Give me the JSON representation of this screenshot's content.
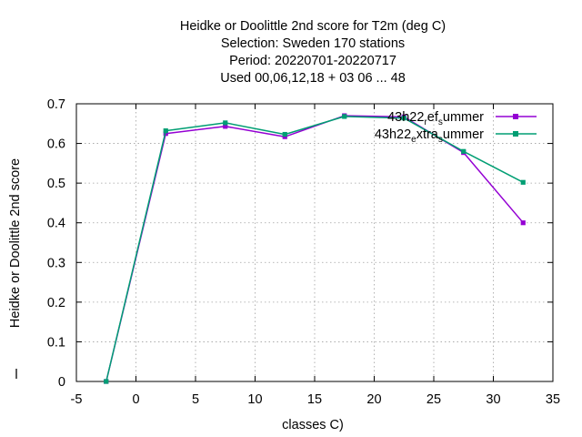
{
  "chart_data": {
    "type": "line",
    "title_lines": [
      "Heidke or Doolittle 2nd score  for T2m (deg C)",
      "Selection: Sweden    170 stations",
      "Period: 20220701-20220717",
      "Used  00,06,12,18  + 03 06 ... 48"
    ],
    "xlabel": "classes C)",
    "ylabel": "Heidke or Doolittle 2nd score",
    "xlim": [
      -5,
      35
    ],
    "ylim": [
      0,
      0.7
    ],
    "xticks": [
      "-5",
      "0",
      "5",
      "10",
      "15",
      "20",
      "25",
      "30",
      "35"
    ],
    "yticks": [
      "0",
      "0.1",
      "0.2",
      "0.3",
      "0.4",
      "0.5",
      "0.6",
      "0.7"
    ],
    "grid": true,
    "legend_position": "top-right",
    "series": [
      {
        "name": "43h22_ref_summer",
        "legend_parts": [
          "43h22",
          "r",
          "ef",
          "s",
          "ummer"
        ],
        "color": "#9400d3",
        "x": [
          -2.5,
          2.5,
          7.5,
          12.5,
          17.5,
          22.5,
          27.5,
          32.5
        ],
        "y": [
          0.0,
          0.625,
          0.643,
          0.617,
          0.67,
          0.667,
          0.577,
          0.4
        ]
      },
      {
        "name": "43h22_extra_summer",
        "legend_parts": [
          "43h22",
          "e",
          "xtra",
          "s",
          "ummer"
        ],
        "color": "#009e73",
        "x": [
          -2.5,
          2.5,
          7.5,
          12.5,
          17.5,
          22.5,
          27.5,
          32.5
        ],
        "y": [
          0.0,
          0.632,
          0.652,
          0.623,
          0.668,
          0.664,
          0.58,
          0.502
        ]
      }
    ]
  }
}
